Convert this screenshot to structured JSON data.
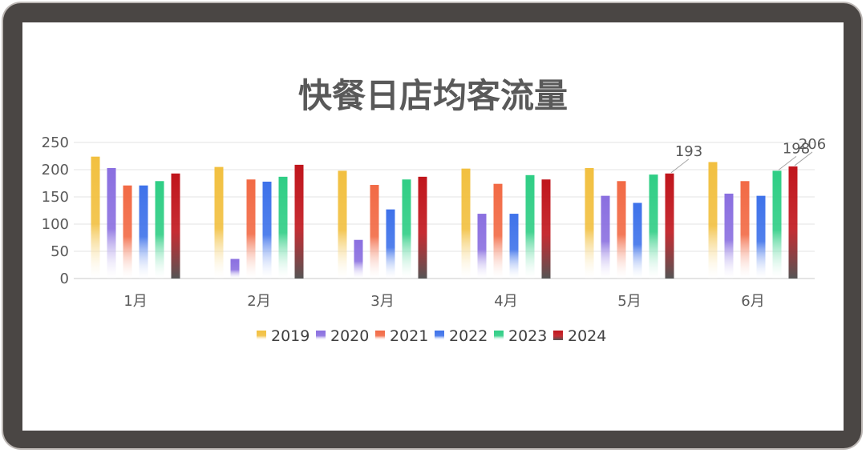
{
  "chart_data": {
    "type": "bar",
    "title": "快餐日店均客流量",
    "categories": [
      "1月",
      "2月",
      "3月",
      "4月",
      "5月",
      "6月"
    ],
    "ylim": [
      0,
      250
    ],
    "yticks": [
      0,
      50,
      100,
      150,
      200,
      250
    ],
    "grid": true,
    "legend": "bottom",
    "series": [
      {
        "name": "2019",
        "color": "#f2c040",
        "values": [
          224,
          205,
          198,
          202,
          203,
          214
        ]
      },
      {
        "name": "2020",
        "color": "#8a6fe0",
        "values": [
          203,
          36,
          71,
          119,
          152,
          156
        ]
      },
      {
        "name": "2021",
        "color": "#f26a45",
        "values": [
          171,
          182,
          172,
          174,
          179,
          179
        ]
      },
      {
        "name": "2022",
        "color": "#3e72ea",
        "values": [
          171,
          178,
          127,
          119,
          139,
          152
        ]
      },
      {
        "name": "2023",
        "color": "#2fce85",
        "values": [
          179,
          187,
          182,
          190,
          191,
          198
        ]
      },
      {
        "name": "2024",
        "color": "#c0151c",
        "values": [
          193,
          209,
          187,
          182,
          193,
          206
        ]
      }
    ],
    "annotations": [
      {
        "category": "5月",
        "series": "2024",
        "text": "193"
      },
      {
        "category": "6月",
        "series": "2023",
        "text": "198"
      },
      {
        "category": "6月",
        "series": "2024",
        "text": "206"
      }
    ]
  }
}
